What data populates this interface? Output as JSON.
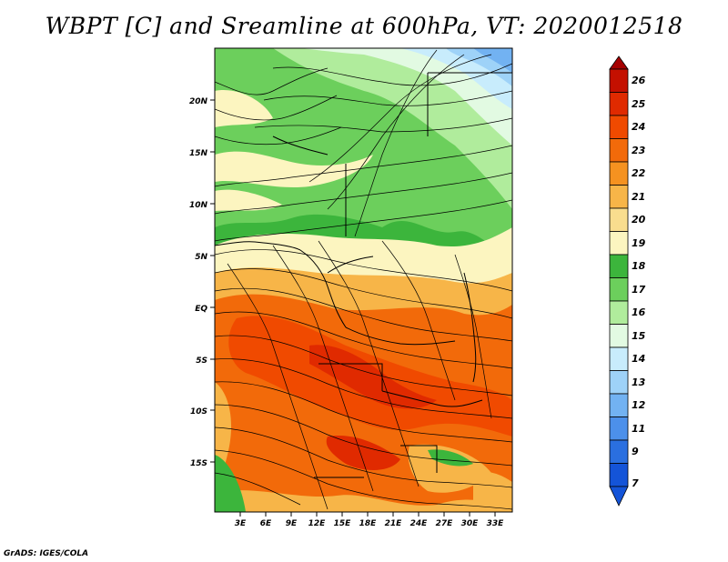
{
  "title": "WBPT [C] and Sreamline at 600hPa, VT: 2020012518",
  "credit": "GrADS: IGES/COLA",
  "lat_labels": [
    "20N",
    "15N",
    "10N",
    "5N",
    "EQ",
    "5S",
    "10S",
    "15S"
  ],
  "lon_labels": [
    "3E",
    "6E",
    "9E",
    "12E",
    "15E",
    "18E",
    "21E",
    "24E",
    "27E",
    "30E",
    "33E"
  ],
  "colorbar": {
    "labels": [
      "26",
      "25",
      "24",
      "23",
      "22",
      "21",
      "20",
      "19",
      "18",
      "17",
      "16",
      "15",
      "14",
      "13",
      "12",
      "11",
      "9",
      "7"
    ],
    "colors": [
      "#a50000",
      "#c41000",
      "#e02a00",
      "#f04a00",
      "#f26a0a",
      "#f59220",
      "#f7b548",
      "#f9dd8e",
      "#fcf5c0",
      "#3cb53c",
      "#6ccf5c",
      "#b0ec9c",
      "#e2fae2",
      "#c8ecfc",
      "#9ed2f8",
      "#72b2f2",
      "#4c90ea",
      "#2a6fe0",
      "#1454d8"
    ]
  },
  "map": {
    "lat_range": [
      -19.5,
      24.5
    ],
    "lon_range": [
      0,
      35
    ],
    "field": "WBPT",
    "units": "C",
    "level": "600hPa"
  }
}
